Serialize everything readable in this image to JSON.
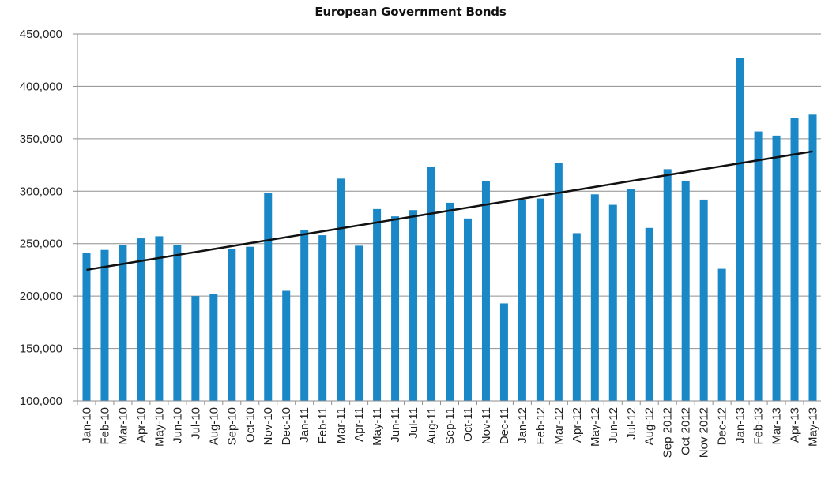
{
  "chart_data": {
    "type": "bar",
    "title": "European Government Bonds",
    "xlabel": "",
    "ylabel": "",
    "ylim": [
      100000,
      450000
    ],
    "yticks": [
      "100,000",
      "150,000",
      "200,000",
      "250,000",
      "300,000",
      "350,000",
      "400,000",
      "450,000"
    ],
    "ytick_values": [
      100000,
      150000,
      200000,
      250000,
      300000,
      350000,
      400000,
      450000
    ],
    "grid": true,
    "bar_color": "#1a87c6",
    "trend_color": "#111111",
    "categories": [
      "Jan-10",
      "Feb-10",
      "Mar-10",
      "Apr-10",
      "May-10",
      "Jun-10",
      "Jul-10",
      "Aug-10",
      "Sep-10",
      "Oct-10",
      "Nov-10",
      "Dec-10",
      "Jan-11",
      "Feb-11",
      "Mar-11",
      "Apr-11",
      "May-11",
      "Jun-11",
      "Jul-11",
      "Aug-11",
      "Sep-11",
      "Oct-11",
      "Nov-11",
      "Dec-11",
      "Jan-12",
      "Feb-12",
      "Mar-12",
      "Apr-12",
      "May-12",
      "Jun-12",
      "Jul-12",
      "Aug-12",
      "Sep 2012",
      "Oct 2012",
      "Nov 2012",
      "Dec-12",
      "Jan-13",
      "Feb-13",
      "Mar-13",
      "Apr-13",
      "May-13"
    ],
    "values": [
      241000,
      244000,
      249000,
      255000,
      257000,
      249000,
      200000,
      202000,
      245000,
      247000,
      298000,
      205000,
      263000,
      258000,
      312000,
      248000,
      283000,
      276000,
      282000,
      323000,
      289000,
      274000,
      310000,
      193000,
      292000,
      293000,
      327000,
      260000,
      297000,
      287000,
      302000,
      265000,
      321000,
      310000,
      292000,
      226000,
      427000,
      357000,
      353000,
      370000,
      373000
    ],
    "trendline": {
      "start": 225000,
      "end": 338000
    }
  }
}
